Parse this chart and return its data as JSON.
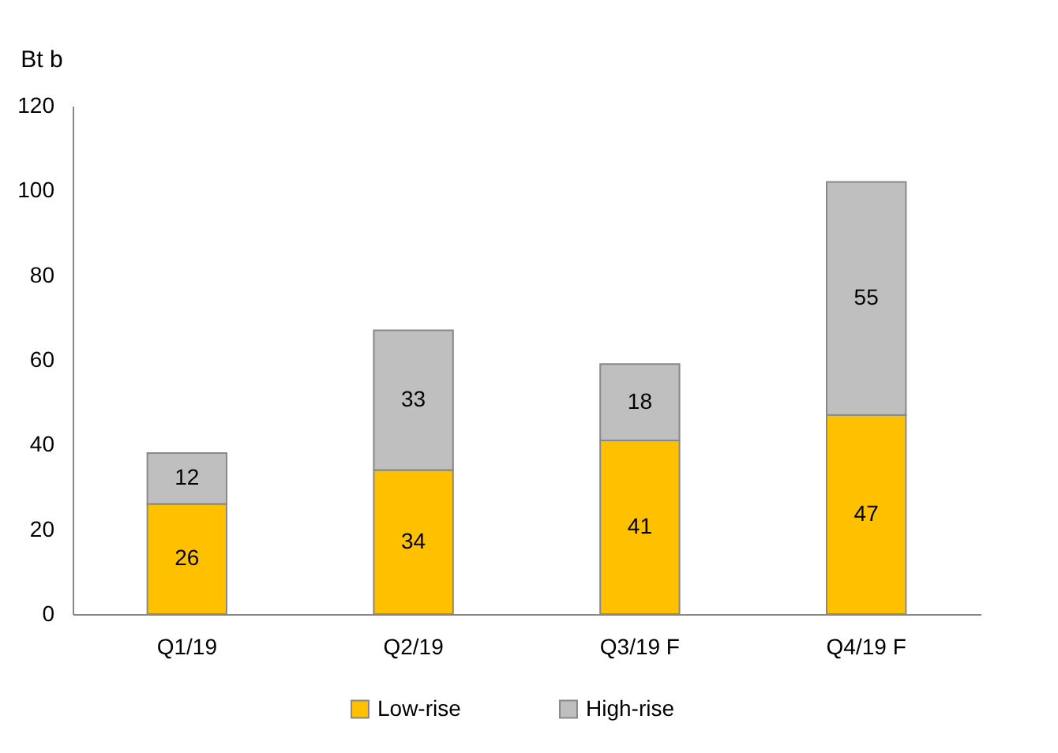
{
  "chart_data": {
    "type": "bar",
    "stacked": true,
    "ylabel": "Bt b",
    "categories": [
      "Q1/19",
      "Q2/19",
      "Q3/19 F",
      "Q4/19 F"
    ],
    "series": [
      {
        "name": "Low-rise",
        "color": "#ffc000",
        "values": [
          26,
          34,
          41,
          47
        ]
      },
      {
        "name": "High-rise",
        "color": "#bfbfbf",
        "values": [
          12,
          33,
          18,
          55
        ]
      }
    ],
    "ylim": [
      0,
      120
    ],
    "yticks": [
      0,
      20,
      40,
      60,
      80,
      100,
      120
    ],
    "data_labels": true,
    "legend": "bottom",
    "grid": false
  }
}
